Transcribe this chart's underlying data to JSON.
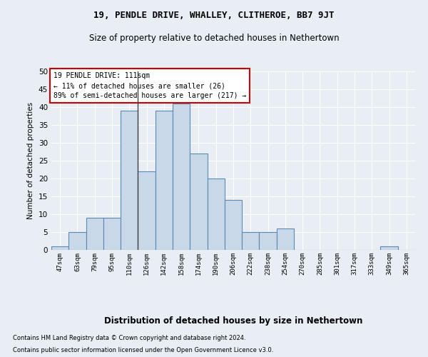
{
  "title1": "19, PENDLE DRIVE, WHALLEY, CLITHEROE, BB7 9JT",
  "title2": "Size of property relative to detached houses in Nethertown",
  "xlabel": "Distribution of detached houses by size in Nethertown",
  "ylabel": "Number of detached properties",
  "footnote1": "Contains HM Land Registry data © Crown copyright and database right 2024.",
  "footnote2": "Contains public sector information licensed under the Open Government Licence v3.0.",
  "categories": [
    "47sqm",
    "63sqm",
    "79sqm",
    "95sqm",
    "110sqm",
    "126sqm",
    "142sqm",
    "158sqm",
    "174sqm",
    "190sqm",
    "206sqm",
    "222sqm",
    "238sqm",
    "254sqm",
    "270sqm",
    "285sqm",
    "301sqm",
    "317sqm",
    "333sqm",
    "349sqm",
    "365sqm"
  ],
  "values": [
    1,
    5,
    9,
    9,
    39,
    22,
    39,
    41,
    27,
    20,
    14,
    5,
    5,
    6,
    0,
    0,
    0,
    0,
    0,
    1,
    0
  ],
  "bar_color": "#c8d8e8",
  "bar_edge_color": "#5a8ab0",
  "bar_linewidth": 0.8,
  "ylim": [
    0,
    50
  ],
  "yticks": [
    0,
    5,
    10,
    15,
    20,
    25,
    30,
    35,
    40,
    45,
    50
  ],
  "vline_color": "#444444",
  "annotation_text": "19 PENDLE DRIVE: 111sqm\n← 11% of detached houses are smaller (26)\n89% of semi-detached houses are larger (217) →",
  "annotation_box_color": "#ffffff",
  "annotation_box_edge_color": "#cc0000",
  "bg_color": "#e8eef4",
  "plot_bg_color": "#e8eef4",
  "grid_color": "#ffffff"
}
